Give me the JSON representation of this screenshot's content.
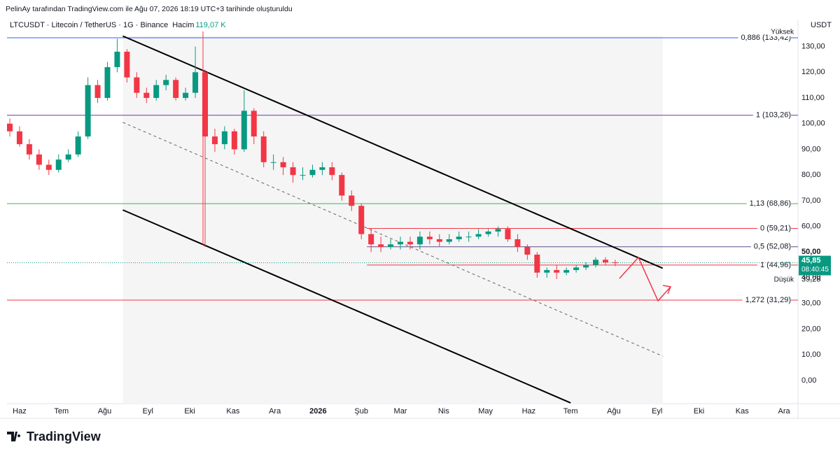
{
  "header": {
    "credit": "PelinAy tarafından TradingView.com ile Ağu 07, 2026 18:19 UTC+3 tarihinde oluşturuldu",
    "symbol": "LTCUSDT · Litecoin / TetherUS · 1G · Binance",
    "volume_label": "Hacim",
    "volume_value": "119,07 K"
  },
  "footer": {
    "logo": "TradingView"
  },
  "chart_data": {
    "type": "candlestick",
    "currency": "USDT",
    "x": [
      2,
      9,
      16,
      23,
      30,
      37,
      44,
      51,
      58,
      65,
      72,
      79,
      86,
      93,
      100,
      107,
      114,
      121,
      128,
      135,
      142,
      149,
      156,
      163,
      170,
      177,
      184,
      191,
      198,
      205,
      212,
      219,
      226,
      233,
      240,
      247,
      254,
      261,
      268,
      275,
      282,
      289,
      296,
      303,
      310,
      317,
      324,
      331,
      338,
      345,
      352,
      359,
      366,
      373,
      380,
      387,
      394,
      401,
      408,
      415,
      422,
      429,
      436
    ],
    "open": [
      100,
      97,
      92,
      88,
      84,
      82,
      86,
      88,
      95,
      115,
      110,
      122,
      128,
      118,
      112,
      110,
      115,
      117,
      110,
      112,
      120,
      95,
      92,
      97,
      90,
      105,
      95,
      85,
      85,
      83,
      80,
      80,
      82,
      83,
      80,
      72,
      68,
      57,
      53,
      52,
      53,
      54,
      53,
      56,
      55,
      54,
      55,
      56,
      56,
      57,
      58,
      59,
      55,
      52,
      49,
      42,
      43,
      42,
      43,
      44,
      45,
      47,
      46
    ],
    "high": [
      102,
      99,
      94,
      90,
      86,
      88,
      90,
      97,
      118,
      117,
      124,
      133,
      129,
      120,
      114,
      117,
      119,
      118,
      114,
      130,
      121,
      98,
      99,
      98,
      113,
      106,
      97,
      88,
      87,
      85,
      83,
      84,
      85,
      85,
      81,
      74,
      69,
      59,
      56,
      55,
      56,
      56,
      58,
      58,
      57,
      57,
      58,
      58,
      59,
      59,
      60,
      60,
      57,
      53,
      50,
      44,
      45,
      44,
      45,
      46,
      48,
      48,
      47
    ],
    "low": [
      95,
      91,
      86,
      82,
      80,
      81,
      85,
      87,
      94,
      108,
      109,
      120,
      116,
      110,
      108,
      109,
      113,
      109,
      109,
      110,
      52,
      89,
      90,
      88,
      89,
      92,
      83,
      82,
      80,
      77,
      78,
      79,
      80,
      78,
      70,
      66,
      55,
      50,
      50,
      51,
      51,
      51,
      51,
      53,
      52,
      53,
      54,
      54,
      55,
      56,
      56,
      54,
      50,
      47,
      40,
      40,
      39.5,
      41,
      42,
      43,
      44,
      45,
      44.5
    ],
    "close": [
      97,
      92,
      88,
      84,
      82,
      86,
      88,
      95,
      115,
      110,
      122,
      128,
      118,
      112,
      110,
      115,
      117,
      110,
      112,
      120,
      95,
      92,
      97,
      90,
      105,
      95,
      85,
      85,
      83,
      80,
      80,
      82,
      83,
      80,
      72,
      68,
      57,
      53,
      52,
      53,
      54,
      53,
      56,
      55,
      54,
      55,
      56,
      56,
      57,
      58,
      59,
      55,
      52,
      49,
      42,
      43,
      42,
      43,
      44,
      45,
      47,
      46,
      45.85
    ],
    "up_color": "#089981",
    "down_color": "#f23645",
    "xlim": [
      0,
      567
    ],
    "xticks": [
      {
        "value": 9,
        "label": "Haz"
      },
      {
        "value": 39,
        "label": "Tem"
      },
      {
        "value": 70,
        "label": "Ağu"
      },
      {
        "value": 101,
        "label": "Eyl"
      },
      {
        "value": 131,
        "label": "Eki"
      },
      {
        "value": 162,
        "label": "Kas"
      },
      {
        "value": 192,
        "label": "Ara"
      },
      {
        "value": 223,
        "label": "2026"
      },
      {
        "value": 254,
        "label": "Şub"
      },
      {
        "value": 282,
        "label": "Mar"
      },
      {
        "value": 313,
        "label": "Nis"
      },
      {
        "value": 343,
        "label": "May"
      },
      {
        "value": 374,
        "label": "Haz"
      },
      {
        "value": 404,
        "label": "Tem"
      },
      {
        "value": 435,
        "label": "Ağu"
      },
      {
        "value": 466,
        "label": "Eyl"
      },
      {
        "value": 496,
        "label": "Eki"
      },
      {
        "value": 527,
        "label": "Kas"
      },
      {
        "value": 557,
        "label": "Ara"
      }
    ],
    "ylim": [
      -9,
      140.5
    ],
    "yticks": [
      {
        "value": 0,
        "label": "0,00"
      },
      {
        "value": 10,
        "label": "10,00"
      },
      {
        "value": 20,
        "label": "20,00"
      },
      {
        "value": 30,
        "label": "30,00"
      },
      {
        "value": 40,
        "label": "40,00"
      },
      {
        "value": 50,
        "label": "50,00"
      },
      {
        "value": 60,
        "label": "60,00"
      },
      {
        "value": 70,
        "label": "70,00"
      },
      {
        "value": 80,
        "label": "80,00"
      },
      {
        "value": 90,
        "label": "90,00"
      },
      {
        "value": 100,
        "label": "100,00"
      },
      {
        "value": 110,
        "label": "110,00"
      },
      {
        "value": 120,
        "label": "120,00"
      },
      {
        "value": 130,
        "label": "130,00"
      }
    ],
    "levels": [
      {
        "label": "0,886 (133,42)",
        "value": 133.42,
        "color": "#2962ff",
        "start": 0
      },
      {
        "label": "1 (103,26)",
        "value": 103.26,
        "color": "#673ab7",
        "start": 0
      },
      {
        "label": "1,13 (68,86)",
        "value": 68.86,
        "color": "#4caf50",
        "start": 0
      },
      {
        "label": "0 (59,21)",
        "value": 59.21,
        "color": "#f23645",
        "start": 258
      },
      {
        "label": "0,5 (52,08)",
        "value": 52.08,
        "color": "#5d4e8c",
        "start": 258
      },
      {
        "label": "1 (44,96)",
        "value": 44.96,
        "color": "#f23645",
        "start": 258
      },
      {
        "label": "1,272 (31,29)",
        "value": 31.29,
        "color": "#f23645",
        "start": 0
      }
    ],
    "channel": {
      "upper": {
        "x": [
          83,
          470
        ],
        "y": [
          134.1,
          43.7
        ]
      },
      "middle": {
        "x": [
          83,
          470
        ],
        "y": [
          100.5,
          9.5
        ]
      },
      "lower": {
        "x": [
          83,
          404
        ],
        "y": [
          66.4,
          -8.7
        ]
      }
    },
    "high_label": "Yüksek",
    "low_label": "Düşük",
    "low_value": {
      "value": 39.28,
      "label": "39,28"
    },
    "last_price": {
      "value": 45.85,
      "label": "45,85"
    },
    "countdown": "08:40:45"
  }
}
